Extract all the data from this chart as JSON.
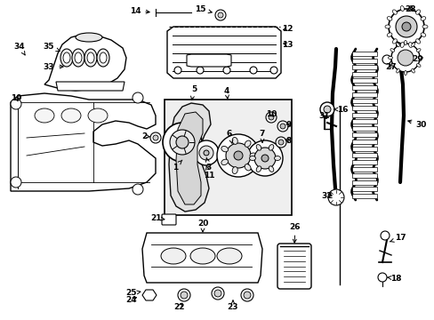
{
  "bg_color": "#ffffff",
  "line_color": "#000000",
  "label_fontsize": 6.5,
  "fig_width": 4.89,
  "fig_height": 3.6,
  "dpi": 100
}
